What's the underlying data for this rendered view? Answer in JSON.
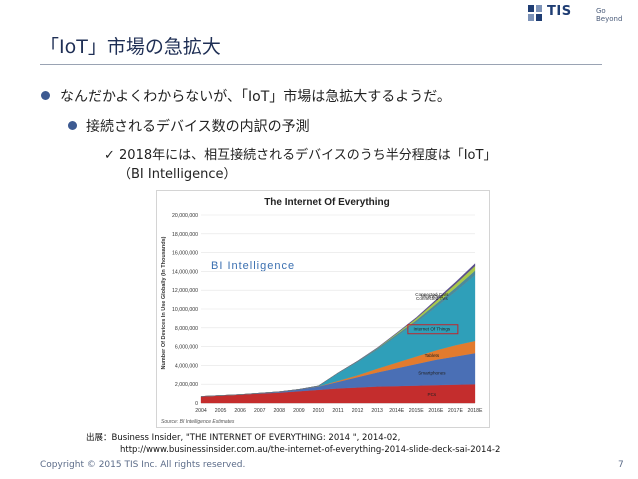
{
  "logo": {
    "text": "TIS",
    "sub": "Go Beyond"
  },
  "slide": {
    "title": "「IoT」市場の急拡大",
    "bullet1": "なんだかよくわからないが、「IoT」市場は急拡大するようだ。",
    "bullet2": "接続されるデバイス数の内訳の予測",
    "bullet3_line1": "✓ 2018年には、相互接続されるデバイスのうち半分程度は「IoT」",
    "bullet3_line2": "（BI Intelligence）"
  },
  "source": {
    "line1": "出展：Business Insider, \"THE INTERNET OF EVERYTHING: 2014 \", 2014-02,",
    "line2": "http://www.businessinsider.com.au/the-internet-of-everything-2014-slide-deck-sai-2014-2"
  },
  "footer": {
    "copyright": "Copyright © 2015 TIS Inc. All rights reserved.",
    "page": "7"
  },
  "colors": {
    "title": "#1f2f55",
    "accent": "#3d5a91",
    "highlight": "#c0262c"
  },
  "chart_data": {
    "type": "area",
    "title": "The Internet Of Everything",
    "watermark": "BI Intelligence",
    "ylabel": "Number Of Devices In Use Globally (In Thousands)",
    "xlabel": "",
    "source_note": "Source: BI Intelligence Estimates",
    "x": [
      "2004",
      "2005",
      "2006",
      "2007",
      "2008",
      "2009",
      "2010",
      "2011",
      "2012",
      "2013",
      "2014E",
      "2015E",
      "2016E",
      "2017E",
      "2018E"
    ],
    "ylim": [
      0,
      20000000
    ],
    "yticks": [
      "0",
      "2,000,000",
      "4,000,000",
      "6,000,000",
      "8,000,000",
      "10,000,000",
      "12,000,000",
      "14,000,000",
      "16,000,000",
      "18,000,000",
      "20,000,000"
    ],
    "highlight_series": "Internet Of Things",
    "series": [
      {
        "name": "PCs",
        "color": "#c42d2d",
        "values": [
          700000,
          800000,
          900000,
          1000000,
          1100000,
          1250000,
          1400000,
          1550000,
          1650000,
          1750000,
          1800000,
          1850000,
          1900000,
          1950000,
          2000000
        ]
      },
      {
        "name": "Smartphones",
        "color": "#4a6fb5",
        "values": [
          0,
          0,
          0,
          50000,
          100000,
          200000,
          350000,
          700000,
          1100000,
          1500000,
          1900000,
          2300000,
          2700000,
          3000000,
          3300000
        ]
      },
      {
        "name": "Tablets",
        "color": "#e27b2e",
        "values": [
          0,
          0,
          0,
          0,
          0,
          0,
          20000,
          100000,
          200000,
          400000,
          600000,
          800000,
          1000000,
          1200000,
          1300000
        ]
      },
      {
        "name": "Internet Of Things",
        "color": "#2f9fb9",
        "values": [
          0,
          0,
          0,
          0,
          0,
          0,
          50000,
          800000,
          1400000,
          2000000,
          2800000,
          3600000,
          4600000,
          5700000,
          7000000
        ]
      },
      {
        "name": "Connected TVs",
        "color": "#4d8a9a",
        "values": [
          0,
          0,
          0,
          0,
          0,
          0,
          0,
          50000,
          100000,
          150000,
          200000,
          250000,
          320000,
          400000,
          480000
        ]
      },
      {
        "name": "Wearables",
        "color": "#a8c84a",
        "values": [
          0,
          0,
          0,
          0,
          0,
          0,
          0,
          0,
          0,
          30000,
          100000,
          200000,
          300000,
          400000,
          500000
        ]
      },
      {
        "name": "Connected Cars",
        "color": "#5a4e8c",
        "values": [
          0,
          0,
          0,
          0,
          0,
          0,
          0,
          0,
          20000,
          40000,
          60000,
          100000,
          150000,
          200000,
          250000
        ]
      }
    ]
  }
}
